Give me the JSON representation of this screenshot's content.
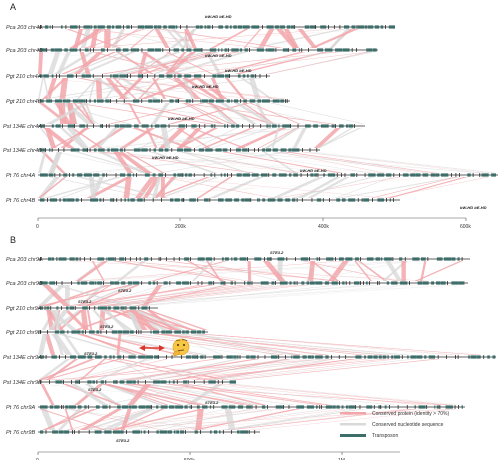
{
  "panels": [
    {
      "letter": "A",
      "tracks": [
        {
          "label": "Pca 203 chr4A"
        },
        {
          "label": "Pca 203 chr4B"
        },
        {
          "label": "Pgt 210 chr4A"
        },
        {
          "label": "Pgt 210 chr4B"
        },
        {
          "label": "Pst 134E chr4A"
        },
        {
          "label": "Pst 134E chr4B"
        },
        {
          "label": "Pt 76 chr4A"
        },
        {
          "label": "Pt 76 chr4B"
        }
      ],
      "gene_labels": [
        "bW-HD bE-HD",
        "bW-HD bE-HD",
        "bW-HD bE-HD",
        "bW-HD bE-HD",
        "bW-HD bE-HD",
        "bW-HD bE-HD",
        "bW-HD bE-HD",
        "bW-HD bE-HD"
      ],
      "axis_ticks": [
        "0",
        "200k",
        "400k",
        "600k"
      ]
    },
    {
      "letter": "B",
      "tracks": [
        {
          "label": "Pca 203 chr9A"
        },
        {
          "label": "Pca 203 chr9B"
        },
        {
          "label": "Pgt 210 chr9A"
        },
        {
          "label": "Pgt 210 chr9B"
        },
        {
          "label": "Pst 134E chr9A"
        },
        {
          "label": "Pst 134E chr9B"
        },
        {
          "label": "Pt 76 chr9A"
        },
        {
          "label": "Pt 76 chr9B"
        }
      ],
      "gene_labels": [
        "STE3.2",
        "STE3.2",
        "STE3.2",
        "STE3.2",
        "STE3.2",
        "STE3.2",
        "STE3.2",
        "STE3.2"
      ],
      "axis_ticks": [
        "0",
        "500k",
        "1M"
      ]
    }
  ],
  "legend": {
    "items": [
      {
        "label": "Conserved protein (identity > 70%)",
        "color": "#f2a6aa"
      },
      {
        "label": "Conserved nucleotide sequence",
        "color": "#d9d9d9"
      },
      {
        "label": "Transposon",
        "color": "#3e6e6a"
      }
    ]
  },
  "colors": {
    "protein": "#f2a6aa",
    "nucleotide": "#d9d9d9",
    "transposon": "#3e6e6a",
    "axis": "#555555",
    "arrow": "#d9362b"
  },
  "icons": [
    "double-arrow-icon",
    "thinking-face-icon"
  ]
}
